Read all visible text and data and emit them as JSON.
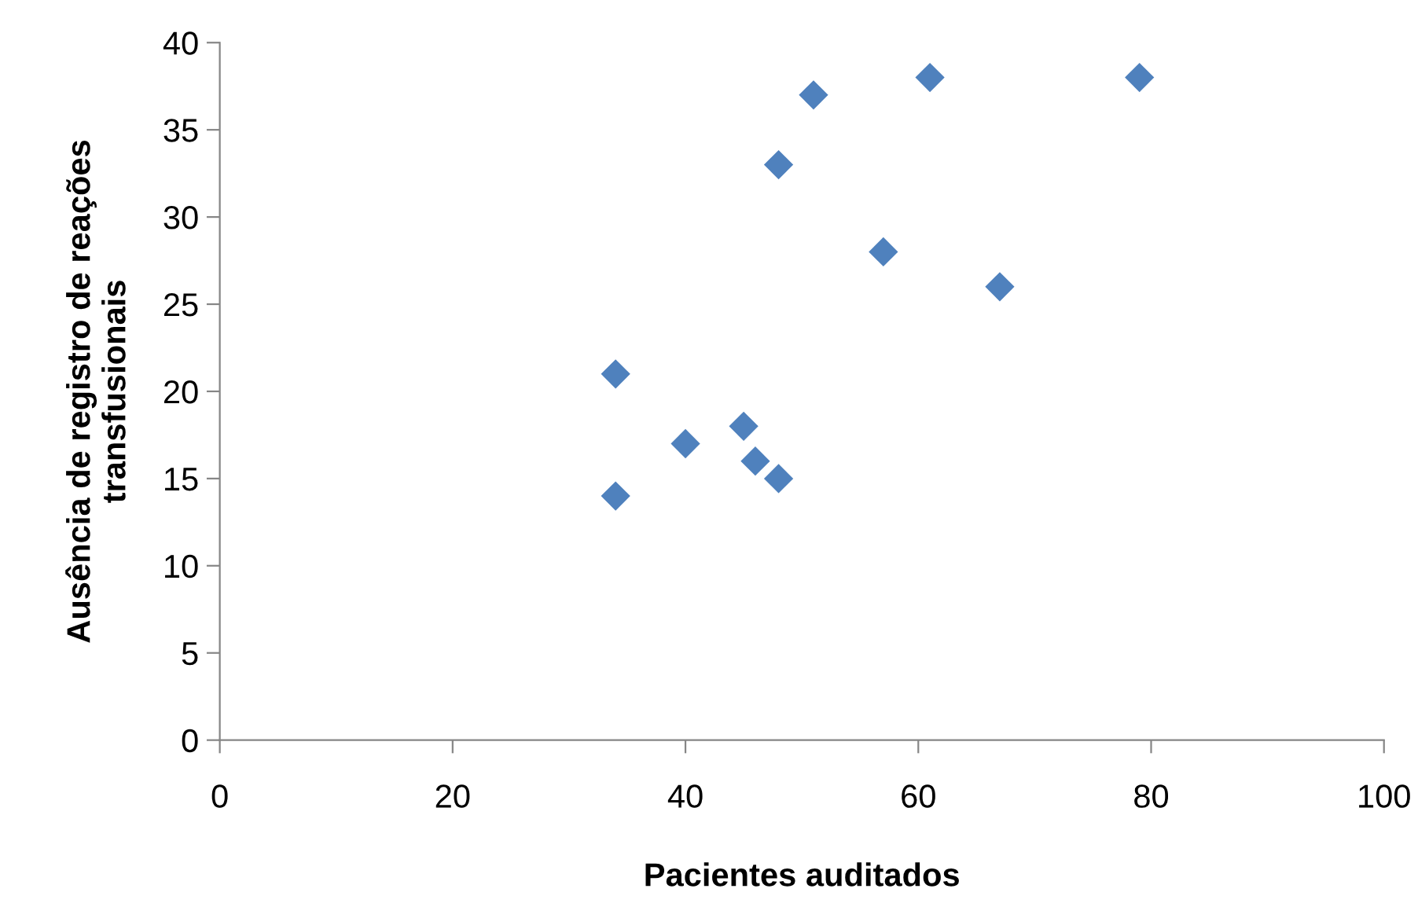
{
  "chart_data": {
    "type": "scatter",
    "xlabel": "Pacientes auditados",
    "ylabel": "Ausência de registro de reações\ntransfusionais",
    "series": [
      {
        "color": "#4f81bd",
        "x": [
          34,
          34,
          40,
          45,
          46,
          48,
          48,
          51,
          57,
          61,
          67,
          79
        ],
        "values": [
          21,
          14,
          17,
          18,
          16,
          15,
          33,
          37,
          28,
          38,
          26,
          38
        ]
      }
    ],
    "marker": "diamond",
    "xlim": [
      0,
      100
    ],
    "xticks": [
      0,
      20,
      40,
      60,
      80,
      100
    ],
    "ylim": [
      0,
      40
    ],
    "yticks": [
      0,
      5,
      10,
      15,
      20,
      25,
      30,
      35,
      40
    ],
    "grid": false
  }
}
